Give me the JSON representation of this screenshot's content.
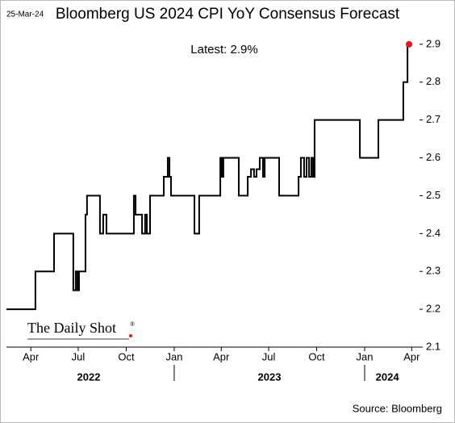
{
  "chart_data": {
    "type": "line",
    "date": "25-Mar-24",
    "title": "Bloomberg US 2024 CPI YoY Consensus Forecast",
    "annotation": "Latest:  2.9%",
    "brand": "The Daily Shot",
    "source": "Source: Bloomberg",
    "step": "after",
    "series": [
      {
        "name": "US 2024 CPI YoY Consensus",
        "color": "#000000",
        "end_marker_color": "#e8141b",
        "x": [
          2022.119,
          2022.271,
          2022.369,
          2022.47,
          2022.483,
          2022.492,
          2022.5,
          2022.534,
          2022.542,
          2022.61,
          2022.627,
          2022.644,
          2022.788,
          2022.797,
          2022.831,
          2022.847,
          2022.856,
          2022.873,
          2022.945,
          2022.966,
          2022.975,
          2022.983,
          2023.106,
          2023.131,
          2023.242,
          2023.25,
          2023.258,
          2023.339,
          2023.386,
          2023.403,
          2023.419,
          2023.432,
          2023.449,
          2023.466,
          2023.475,
          2023.551,
          2023.653,
          2023.665,
          2023.682,
          2023.695,
          2023.708,
          2023.72,
          2023.729,
          2023.737,
          2023.975,
          2024.072,
          2024.203,
          2024.225,
          2024.233
        ],
        "values": [
          2.2,
          2.3,
          2.4,
          2.25,
          2.3,
          2.25,
          2.3,
          2.45,
          2.5,
          2.4,
          2.45,
          2.4,
          2.5,
          2.45,
          2.4,
          2.45,
          2.4,
          2.5,
          2.55,
          2.6,
          2.55,
          2.5,
          2.4,
          2.5,
          2.6,
          2.55,
          2.6,
          2.5,
          2.55,
          2.57,
          2.55,
          2.57,
          2.6,
          2.55,
          2.6,
          2.5,
          2.55,
          2.6,
          2.55,
          2.6,
          2.55,
          2.6,
          2.55,
          2.7,
          2.6,
          2.7,
          2.8,
          2.9,
          2.9
        ]
      }
    ],
    "xlim": [
      2022.119,
      2024.288
    ],
    "xticks": [
      {
        "value": 2022.247,
        "label": "Apr"
      },
      {
        "value": 2022.496,
        "label": "Jul"
      },
      {
        "value": 2022.748,
        "label": "Oct"
      },
      {
        "value": 2023.0,
        "label": "Jan"
      },
      {
        "value": 2023.247,
        "label": "Apr"
      },
      {
        "value": 2023.496,
        "label": "Jul"
      },
      {
        "value": 2023.748,
        "label": "Oct"
      },
      {
        "value": 2024.0,
        "label": "Jan"
      },
      {
        "value": 2024.247,
        "label": "Apr"
      }
    ],
    "year_labels": [
      {
        "value": 2022.551,
        "label": "2022"
      },
      {
        "value": 2023.5,
        "label": "2023"
      },
      {
        "value": 2024.119,
        "label": "2024"
      }
    ],
    "year_dividers": [
      2023,
      2024
    ],
    "ylim": [
      2.1,
      2.953
    ],
    "yticks": [
      2.1,
      2.2,
      2.3,
      2.4,
      2.5,
      2.6,
      2.7,
      2.8,
      2.9
    ]
  }
}
